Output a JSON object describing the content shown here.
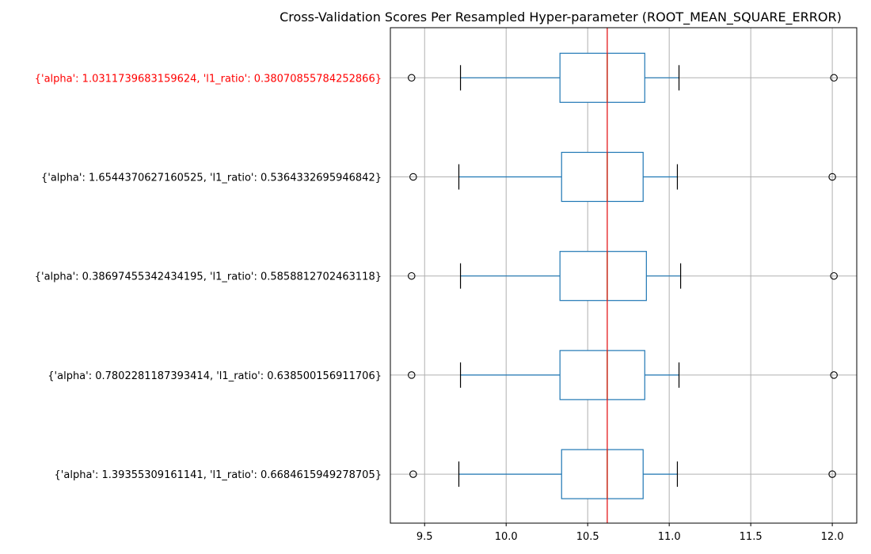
{
  "chart_data": {
    "type": "boxplot",
    "orientation": "horizontal",
    "title": "Cross-Validation Scores Per Resampled Hyper-parameter (ROOT_MEAN_SQUARE_ERROR)",
    "xlabel": "",
    "ylabel": "",
    "xlim": [
      9.29,
      12.15
    ],
    "xticks": [
      "9.5",
      "10.0",
      "10.5",
      "11.0",
      "11.5",
      "12.0"
    ],
    "xtick_values": [
      9.5,
      10.0,
      10.5,
      11.0,
      11.5,
      12.0
    ],
    "grid": true,
    "reference_line": {
      "x": 10.62,
      "color": "#e41a1c"
    },
    "colors": {
      "box": "#1f77b4",
      "median": "#2ca02c",
      "whisker_cap": "#000000",
      "highlight_label": "#ff0000",
      "grid": "#b0b0b0"
    },
    "boxes": [
      {
        "label": "{'alpha': 1.0311739683159624, 'l1_ratio': 0.38070855784252866}",
        "highlight": true,
        "whislo": 9.72,
        "q1": 10.33,
        "med": 10.62,
        "q3": 10.85,
        "whishi": 11.06,
        "fliers": [
          9.42,
          12.01
        ]
      },
      {
        "label": "{'alpha': 1.6544370627160525, 'l1_ratio': 0.5364332695946842}",
        "highlight": false,
        "whislo": 9.71,
        "q1": 10.34,
        "med": 10.62,
        "q3": 10.84,
        "whishi": 11.05,
        "fliers": [
          9.43,
          12.0
        ]
      },
      {
        "label": "{'alpha': 0.38697455342434195, 'l1_ratio': 0.5858812702463118}",
        "highlight": false,
        "whislo": 9.72,
        "q1": 10.33,
        "med": 10.62,
        "q3": 10.86,
        "whishi": 11.07,
        "fliers": [
          9.42,
          12.01
        ]
      },
      {
        "label": "{'alpha': 0.7802281187393414, 'l1_ratio': 0.638500156911706}",
        "highlight": false,
        "whislo": 9.72,
        "q1": 10.33,
        "med": 10.62,
        "q3": 10.85,
        "whishi": 11.06,
        "fliers": [
          9.42,
          12.01
        ]
      },
      {
        "label": "{'alpha': 1.39355309161141, 'l1_ratio': 0.6684615949278705}",
        "highlight": false,
        "whislo": 9.71,
        "q1": 10.34,
        "med": 10.62,
        "q3": 10.84,
        "whishi": 11.05,
        "fliers": [
          9.43,
          12.0
        ]
      }
    ]
  }
}
